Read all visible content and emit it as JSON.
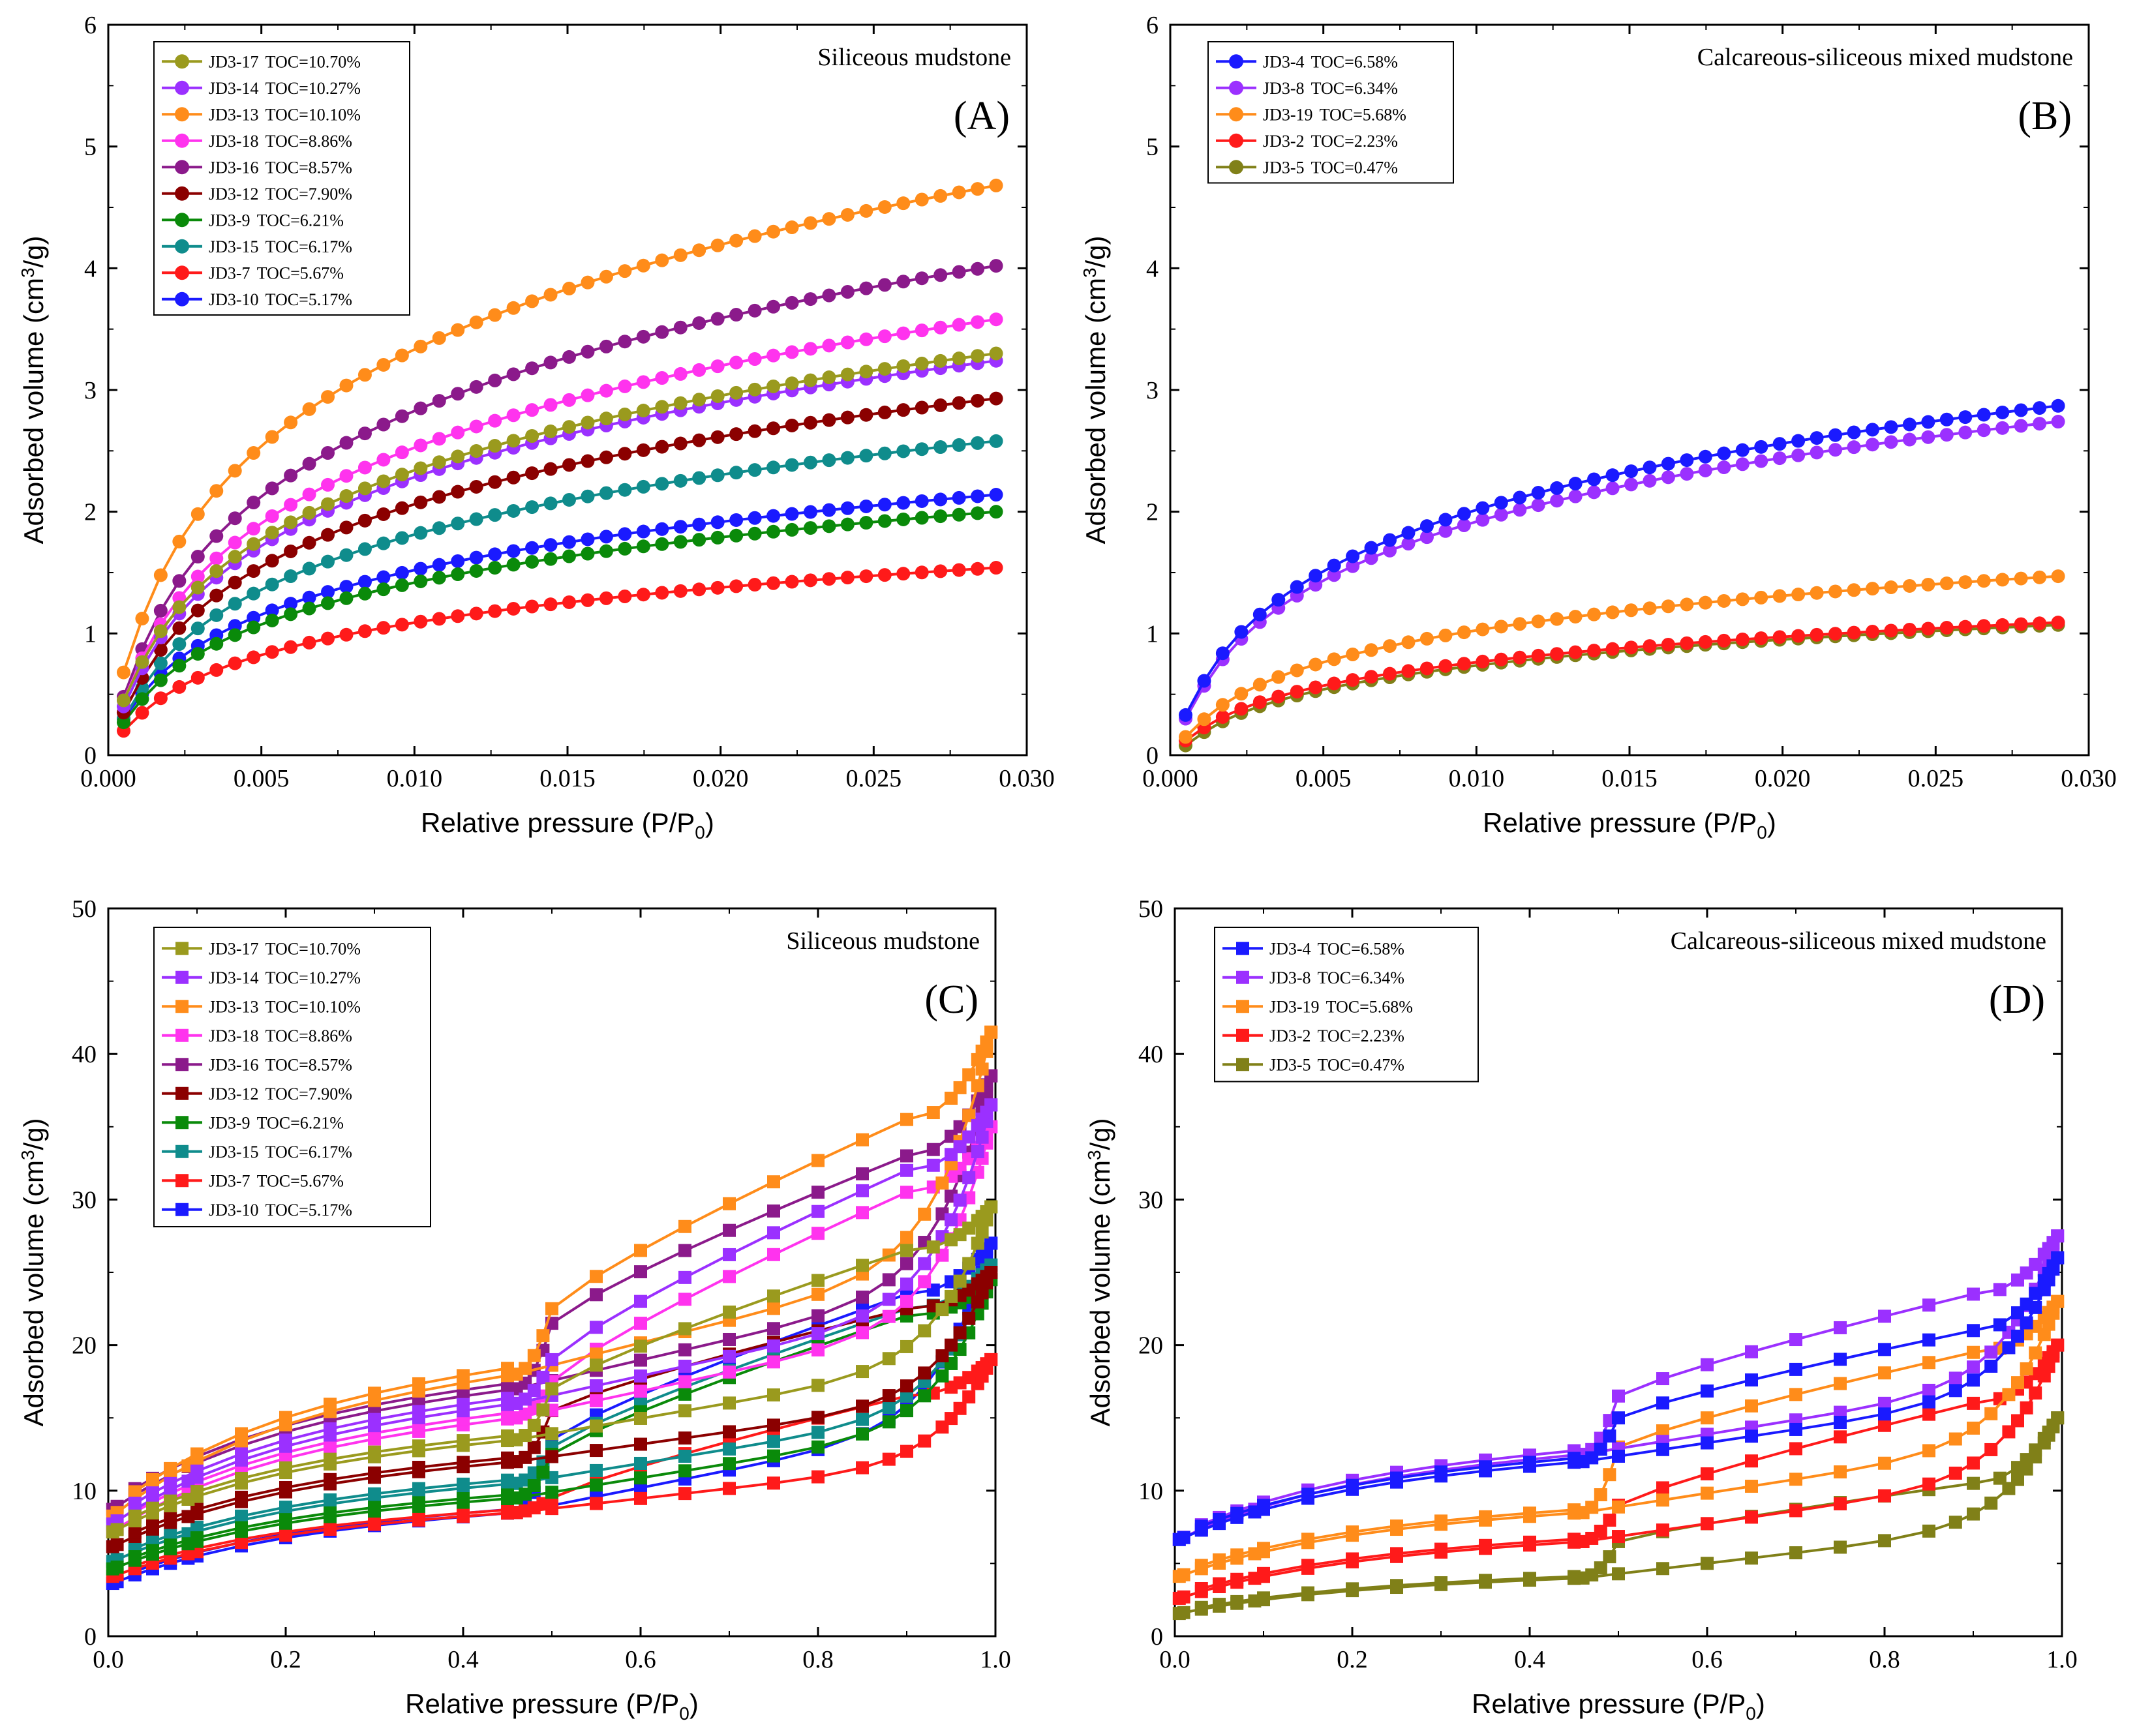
{
  "chart_data": [
    {
      "id": "A",
      "type": "line",
      "letter": "(A)",
      "title": "Siliceous mudstone",
      "xlabel": "Relative pressure (P/P",
      "xlabel_sub": "0",
      "xlabel_tail": ")",
      "ylabel": "Adsorbed volume (cm",
      "ylabel_sup": "3",
      "ylabel_tail": "/g)",
      "xlim": [
        0,
        0.03
      ],
      "ylim": [
        0,
        6
      ],
      "xticks": [
        0,
        0.005,
        0.01,
        0.015,
        0.02,
        0.025,
        0.03
      ],
      "xtick_labels": [
        "0.000",
        "0.005",
        "0.010",
        "0.015",
        "0.020",
        "0.025",
        "0.030"
      ],
      "yticks": [
        0,
        1,
        2,
        3,
        4,
        5,
        6
      ],
      "ytick_labels": [
        "0",
        "1",
        "2",
        "3",
        "4",
        "5",
        "6"
      ],
      "marker": "circle",
      "legend_position": "top-left",
      "series": [
        {
          "name": "JD3-17",
          "toc": "TOC=10.70%",
          "color": "#9a9a1e",
          "vstart": 0.45,
          "vend": 3.3
        },
        {
          "name": "JD3-14",
          "toc": "TOC=10.27%",
          "color": "#9b30ff",
          "vstart": 0.4,
          "vend": 3.24
        },
        {
          "name": "JD3-13",
          "toc": "TOC=10.10%",
          "color": "#ff8c1a",
          "vstart": 0.68,
          "vend": 4.68
        },
        {
          "name": "JD3-18",
          "toc": "TOC=8.86%",
          "color": "#ff33ee",
          "vstart": 0.45,
          "vend": 3.58
        },
        {
          "name": "JD3-16",
          "toc": "TOC=8.57%",
          "color": "#8b1a8b",
          "vstart": 0.48,
          "vend": 4.02
        },
        {
          "name": "JD3-12",
          "toc": "TOC=7.90%",
          "color": "#8b0000",
          "vstart": 0.35,
          "vend": 2.93
        },
        {
          "name": "JD3-9",
          "toc": "TOC=6.21%",
          "color": "#0a8a0a",
          "vstart": 0.27,
          "vend": 2.0
        },
        {
          "name": "JD3-15",
          "toc": "TOC=6.17%",
          "color": "#0f8c8c",
          "vstart": 0.3,
          "vend": 2.58
        },
        {
          "name": "JD3-7",
          "toc": "TOC=5.67%",
          "color": "#ff1a1a",
          "vstart": 0.2,
          "vend": 1.54
        },
        {
          "name": "JD3-10",
          "toc": "TOC=5.17%",
          "color": "#1a1aff",
          "vstart": 0.3,
          "vend": 2.14
        }
      ]
    },
    {
      "id": "B",
      "type": "line",
      "letter": "(B)",
      "title": "Calcareous-siliceous mixed mudstone",
      "xlabel": "Relative pressure (P/P",
      "xlabel_sub": "0",
      "xlabel_tail": ")",
      "ylabel": "Adsorbed volume (cm",
      "ylabel_sup": "3",
      "ylabel_tail": "/g)",
      "xlim": [
        0,
        0.03
      ],
      "ylim": [
        0,
        6
      ],
      "xticks": [
        0,
        0.005,
        0.01,
        0.015,
        0.02,
        0.025,
        0.03
      ],
      "xtick_labels": [
        "0.000",
        "0.005",
        "0.010",
        "0.015",
        "0.020",
        "0.025",
        "0.030"
      ],
      "yticks": [
        0,
        1,
        2,
        3,
        4,
        5,
        6
      ],
      "ytick_labels": [
        "0",
        "1",
        "2",
        "3",
        "4",
        "5",
        "6"
      ],
      "marker": "circle",
      "legend_position": "top-left",
      "series": [
        {
          "name": "JD3-4",
          "toc": "TOC=6.58%",
          "color": "#1a1aff",
          "vstart": 0.33,
          "vend": 2.87
        },
        {
          "name": "JD3-8",
          "toc": "TOC=6.34%",
          "color": "#9b30ff",
          "vstart": 0.3,
          "vend": 2.74
        },
        {
          "name": "JD3-19",
          "toc": "TOC=5.68%",
          "color": "#ff8c1a",
          "vstart": 0.15,
          "vend": 1.47
        },
        {
          "name": "JD3-2",
          "toc": "TOC=2.23%",
          "color": "#ff1a1a",
          "vstart": 0.12,
          "vend": 1.09
        },
        {
          "name": "JD3-5",
          "toc": "TOC=0.47%",
          "color": "#808018",
          "vstart": 0.08,
          "vend": 1.07
        }
      ]
    },
    {
      "id": "C",
      "type": "line",
      "letter": "(C)",
      "title": "Siliceous mudstone",
      "xlabel": "Relative pressure (P/P",
      "xlabel_sub": "0",
      "xlabel_tail": ")",
      "ylabel": "Adsorbed volume (cm",
      "ylabel_sup": "3",
      "ylabel_tail": "/g)",
      "xlim": [
        0,
        1
      ],
      "ylim": [
        0,
        50
      ],
      "xticks": [
        0,
        0.2,
        0.4,
        0.6,
        0.8,
        1.0
      ],
      "xtick_labels": [
        "0.0",
        "0.2",
        "0.4",
        "0.6",
        "0.8",
        "1.0"
      ],
      "yticks": [
        0,
        10,
        20,
        30,
        40,
        50
      ],
      "ytick_labels": [
        "0",
        "10",
        "20",
        "30",
        "40",
        "50"
      ],
      "marker": "square",
      "legend_position": "top-left",
      "series": [
        {
          "name": "JD3-17",
          "toc": "TOC=10.70%",
          "color": "#9a9a1e",
          "a0": 7.0,
          "a46": 13.5,
          "amax": 29.5,
          "d50": 17.0,
          "d90": 26.5
        },
        {
          "name": "JD3-14",
          "toc": "TOC=10.27%",
          "color": "#9b30ff",
          "a0": 7.5,
          "a46": 16.0,
          "amax": 36.5,
          "d50": 19.0,
          "d90": 32.0
        },
        {
          "name": "JD3-13",
          "toc": "TOC=10.10%",
          "color": "#ff8c1a",
          "a0": 8.0,
          "a46": 18.0,
          "amax": 41.5,
          "d50": 22.5,
          "d90": 35.5
        },
        {
          "name": "JD3-18",
          "toc": "TOC=8.86%",
          "color": "#ff33ee",
          "a0": 7.0,
          "a46": 15.0,
          "amax": 35.0,
          "d50": 17.5,
          "d90": 30.5
        },
        {
          "name": "JD3-16",
          "toc": "TOC=8.57%",
          "color": "#8b1a8b",
          "a0": 8.5,
          "a46": 17.0,
          "amax": 38.5,
          "d50": 21.5,
          "d90": 33.0
        },
        {
          "name": "JD3-12",
          "toc": "TOC=7.90%",
          "color": "#8b0000",
          "a0": 6.0,
          "a46": 12.0,
          "amax": 25.0,
          "d50": 15.5,
          "d90": 22.5
        },
        {
          "name": "JD3-9",
          "toc": "TOC=6.21%",
          "color": "#0a8a0a",
          "a0": 4.5,
          "a46": 9.5,
          "amax": 24.5,
          "d50": 12.5,
          "d90": 22.0
        },
        {
          "name": "JD3-15",
          "toc": "TOC=6.17%",
          "color": "#0f8c8c",
          "a0": 5.0,
          "a46": 10.5,
          "amax": 25.5,
          "d50": 13.0,
          "d90": 22.5
        },
        {
          "name": "JD3-7",
          "toc": "TOC=5.67%",
          "color": "#ff1a1a",
          "a0": 4.0,
          "a46": 8.5,
          "amax": 19.0,
          "d50": 9.5,
          "d90": 16.5
        },
        {
          "name": "JD3-10",
          "toc": "TOC=5.17%",
          "color": "#1a1aff",
          "a0": 3.5,
          "a46": 8.5,
          "amax": 27.0,
          "d50": 13.5,
          "d90": 23.5
        }
      ]
    },
    {
      "id": "D",
      "type": "line",
      "letter": "(D)",
      "title": "Calcareous-siliceous mixed mudstone",
      "xlabel": "Relative pressure (P/P",
      "xlabel_sub": "0",
      "xlabel_tail": ")",
      "ylabel": "Adsorbed volume (cm",
      "ylabel_sup": "3",
      "ylabel_tail": "/g)",
      "xlim": [
        0,
        1
      ],
      "ylim": [
        0,
        50
      ],
      "xticks": [
        0,
        0.2,
        0.4,
        0.6,
        0.8,
        1.0
      ],
      "xtick_labels": [
        "0.0",
        "0.2",
        "0.4",
        "0.6",
        "0.8",
        "1.0"
      ],
      "yticks": [
        0,
        10,
        20,
        30,
        40,
        50
      ],
      "ytick_labels": [
        "0",
        "10",
        "20",
        "30",
        "40",
        "50"
      ],
      "marker": "square",
      "legend_position": "top-left",
      "series": [
        {
          "name": "JD3-4",
          "toc": "TOC=6.58%",
          "color": "#1a1aff",
          "a0": 6.5,
          "a46": 12.0,
          "amax": 26.0,
          "d50": 15.0,
          "d90": 21.0
        },
        {
          "name": "JD3-8",
          "toc": "TOC=6.34%",
          "color": "#9b30ff",
          "a0": 6.5,
          "a46": 12.5,
          "amax": 27.5,
          "d50": 16.5,
          "d90": 23.5
        },
        {
          "name": "JD3-19",
          "toc": "TOC=5.68%",
          "color": "#ff8c1a",
          "a0": 4.0,
          "a46": 8.5,
          "amax": 23.0,
          "d50": 13.0,
          "d90": 19.5
        },
        {
          "name": "JD3-2",
          "toc": "TOC=2.23%",
          "color": "#ff1a1a",
          "a0": 2.5,
          "a46": 6.5,
          "amax": 20.0,
          "d50": 9.0,
          "d90": 16.0
        },
        {
          "name": "JD3-5",
          "toc": "TOC=0.47%",
          "color": "#808018",
          "a0": 1.5,
          "a46": 4.0,
          "amax": 15.0,
          "d50": 6.5,
          "d90": 10.5
        }
      ]
    }
  ]
}
